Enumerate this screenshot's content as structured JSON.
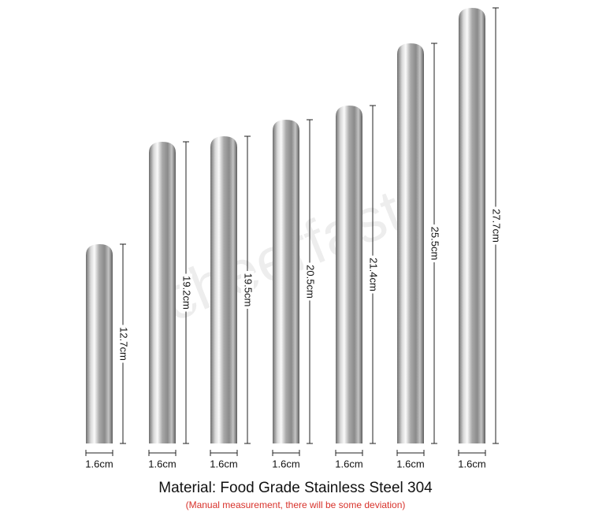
{
  "watermark": "cheerfast",
  "items": [
    {
      "length": "12.7cm",
      "width": "1.6cm"
    },
    {
      "length": "19.2cm",
      "width": "1.6cm"
    },
    {
      "length": "19.5cm",
      "width": "1.6cm"
    },
    {
      "length": "20.5cm",
      "width": "1.6cm"
    },
    {
      "length": "21.4cm",
      "width": "1.6cm"
    },
    {
      "length": "25.5cm",
      "width": "1.6cm"
    },
    {
      "length": "27.7cm",
      "width": "1.6cm"
    }
  ],
  "caption": {
    "title": "Material: Food Grade Stainless Steel 304",
    "note": "(Manual measurement, there will be some deviation)"
  }
}
